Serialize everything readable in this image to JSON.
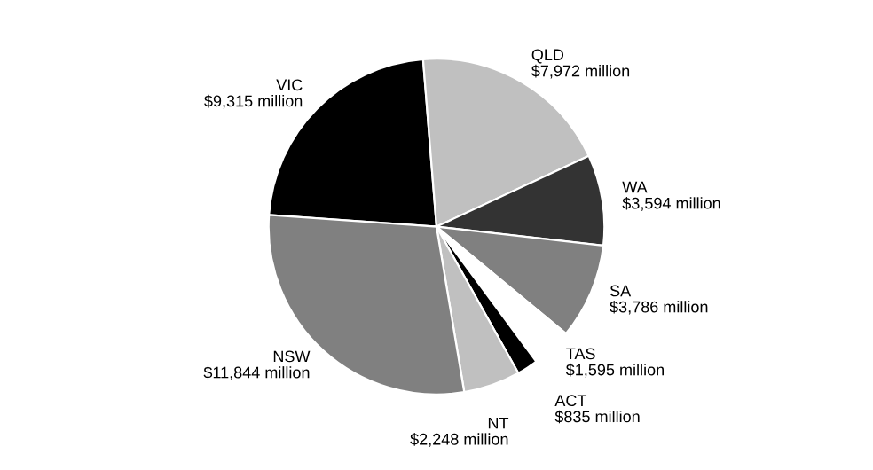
{
  "chart_data": {
    "type": "pie",
    "categories": [
      "VIC",
      "QLD",
      "WA",
      "SA",
      "TAS",
      "ACT",
      "NT",
      "NSW"
    ],
    "values": [
      9315,
      7972,
      3594,
      3786,
      1595,
      835,
      2248,
      11844
    ],
    "value_labels": [
      "$9,315 million",
      "$7,972 million",
      "$3,594 million",
      "$3,786 million",
      "$1,595 million",
      "$835 million",
      "$2,248 million",
      "$11,844 million"
    ],
    "colors": [
      "#000000",
      "#c0c0c0",
      "#333333",
      "#808080",
      "#ffffff",
      "#000000",
      "#c0c0c0",
      "#808080"
    ],
    "legend": false
  }
}
